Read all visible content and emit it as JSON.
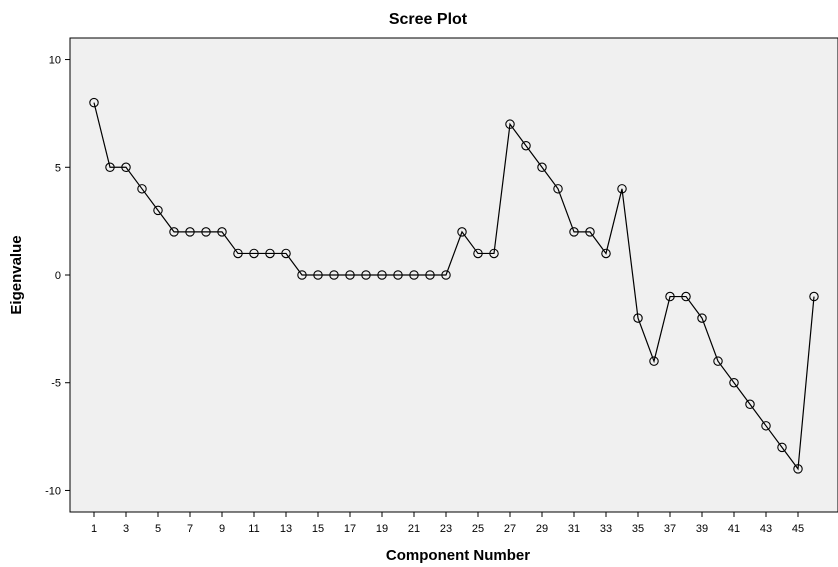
{
  "chart_data": {
    "type": "line",
    "title": "Scree Plot",
    "xlabel": "Component Number",
    "ylabel": "Eigenvalue",
    "x": [
      1,
      2,
      3,
      4,
      5,
      6,
      7,
      8,
      9,
      10,
      11,
      12,
      13,
      14,
      15,
      16,
      17,
      18,
      19,
      20,
      21,
      22,
      23,
      24,
      25,
      26,
      27,
      28,
      29,
      30,
      31,
      32,
      33,
      34,
      35,
      36,
      37,
      38,
      39,
      40,
      41,
      42,
      43,
      44,
      45,
      46
    ],
    "y": [
      8,
      5,
      5,
      4,
      3,
      2,
      2,
      2,
      2,
      1,
      1,
      1,
      1,
      0,
      0,
      0,
      0,
      0,
      0,
      0,
      0,
      0,
      0,
      2,
      1,
      1,
      7,
      6,
      5,
      4,
      2,
      2,
      1,
      4,
      -2,
      -4,
      -1,
      -1,
      -2,
      -4,
      -5,
      -6,
      -7,
      -8,
      -9,
      -1
    ],
    "xticks": [
      1,
      3,
      5,
      7,
      9,
      11,
      13,
      15,
      17,
      19,
      21,
      23,
      25,
      27,
      29,
      31,
      33,
      35,
      37,
      39,
      41,
      43,
      45
    ],
    "yticks": [
      -10,
      -5,
      0,
      5,
      10
    ],
    "xlim": [
      -0.5,
      47.5
    ],
    "ylim": [
      -11,
      11
    ],
    "marker": "circle",
    "grid": false,
    "colors": {
      "plot_background": "#f0f0f0",
      "line": "#000000"
    }
  }
}
